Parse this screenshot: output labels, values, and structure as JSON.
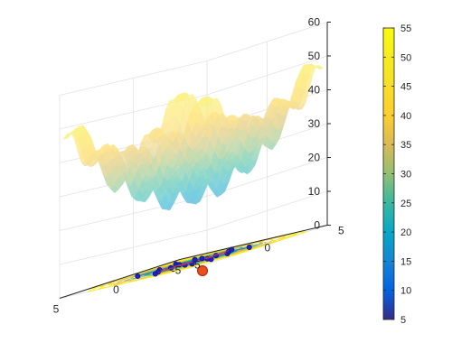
{
  "chart_data": {
    "type": "surface",
    "title": "",
    "xlabel": "",
    "ylabel": "",
    "zlabel": "",
    "xlim": [
      -5,
      5
    ],
    "ylim": [
      -5,
      5
    ],
    "zlim": [
      0,
      60
    ],
    "x_ticks": [
      "-5",
      "0",
      "5"
    ],
    "y_ticks": [
      "-5",
      "0",
      "5"
    ],
    "z_ticks": [
      "0",
      "10",
      "20",
      "30",
      "40",
      "50",
      "60"
    ],
    "colorbar": {
      "colormap": "parula",
      "min": 5,
      "max": 55,
      "ticks": [
        "5",
        "10",
        "15",
        "20",
        "25",
        "30",
        "35",
        "40",
        "45",
        "50",
        "55"
      ]
    },
    "surface": {
      "description_free": true,
      "function": "rastrigin_like",
      "approx_min_value": 0,
      "approx_max_value": 57
    },
    "contour_on_floor": true,
    "markers": {
      "blue_points_count": 18,
      "center_marker": {
        "x": 0,
        "y": 0,
        "color": "#e85020"
      }
    },
    "colors": {
      "axis": "#262626",
      "grid": "#e0e0e0",
      "marker_blue": "#2020d0",
      "marker_red": "#e04010"
    }
  }
}
